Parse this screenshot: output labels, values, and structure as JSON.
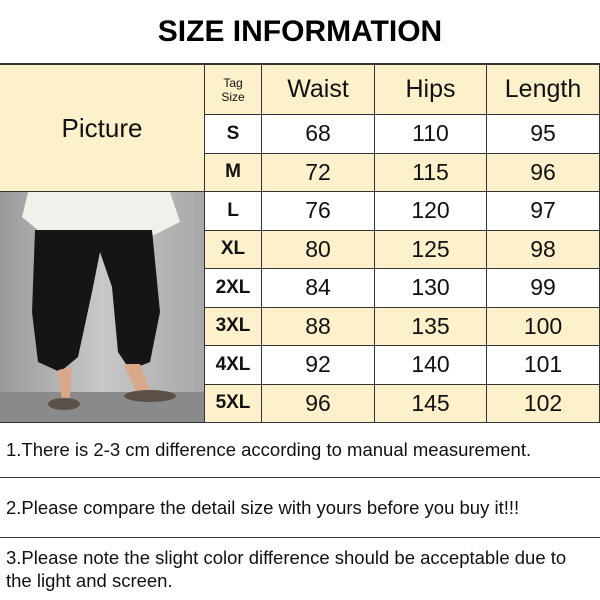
{
  "title": "SIZE INFORMATION",
  "header": {
    "picture": "Picture",
    "tag_line1": "Tag",
    "tag_line2": "Size",
    "columns": [
      "Waist",
      "Hips",
      "Length"
    ]
  },
  "rows": [
    {
      "size": "S",
      "waist": "68",
      "hips": "110",
      "length": "95"
    },
    {
      "size": "M",
      "waist": "72",
      "hips": "115",
      "length": "96"
    },
    {
      "size": "L",
      "waist": "76",
      "hips": "120",
      "length": "97"
    },
    {
      "size": "XL",
      "waist": "80",
      "hips": "125",
      "length": "98"
    },
    {
      "size": "2XL",
      "waist": "84",
      "hips": "130",
      "length": "99"
    },
    {
      "size": "3XL",
      "waist": "88",
      "hips": "135",
      "length": "100"
    },
    {
      "size": "4XL",
      "waist": "92",
      "hips": "140",
      "length": "101"
    },
    {
      "size": "5XL",
      "waist": "96",
      "hips": "145",
      "length": "102"
    }
  ],
  "notes": [
    "1.There is 2-3 cm difference according to manual measurement.",
    "2.Please compare the detail size with yours before you buy it!!!",
    "3.Please note the slight color difference should be acceptable due to the light and screen."
  ],
  "colors": {
    "highlight": "#fdf1cb",
    "border": "#333333"
  }
}
